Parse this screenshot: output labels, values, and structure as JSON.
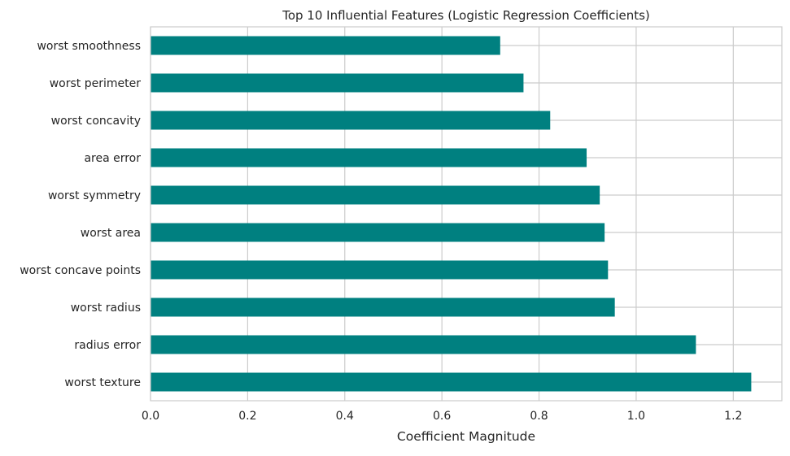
{
  "chart_data": {
    "type": "bar",
    "orientation": "horizontal",
    "title": "Top 10 Influential Features (Logistic Regression Coefficients)",
    "xlabel": "Coefficient Magnitude",
    "ylabel": "",
    "categories": [
      "worst smoothness",
      "worst perimeter",
      "worst concavity",
      "area error",
      "worst symmetry",
      "worst area",
      "worst concave points",
      "worst radius",
      "radius error",
      "worst texture"
    ],
    "values": [
      0.72,
      0.768,
      0.823,
      0.898,
      0.925,
      0.935,
      0.942,
      0.956,
      1.123,
      1.237
    ],
    "xlim": [
      0,
      1.3
    ],
    "xticks": [
      "0.0",
      "0.2",
      "0.4",
      "0.6",
      "0.8",
      "1.0",
      "1.2"
    ],
    "xtick_values": [
      0,
      0.2,
      0.4,
      0.6,
      0.8,
      1.0,
      1.2
    ],
    "grid": true,
    "bar_color": "#008080",
    "grid_color": "#cccccc"
  }
}
